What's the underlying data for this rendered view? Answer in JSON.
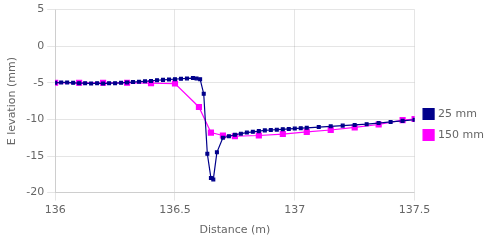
{
  "chart_data": {
    "type": "line",
    "xlabel": "Distance (m)",
    "ylabel": "E levation (mm)",
    "xlim": [
      136,
      137.5
    ],
    "ylim": [
      -20,
      5
    ],
    "xticks": [
      136,
      136.5,
      137,
      137.5
    ],
    "yticks": [
      -20,
      -15,
      -10,
      -5,
      0,
      5
    ],
    "grid": true,
    "legend": "right",
    "series": [
      {
        "name": "25 mm",
        "color": "#00008B",
        "marker": "square",
        "x": [
          136.0,
          136.025,
          136.05,
          136.075,
          136.1,
          136.125,
          136.15,
          136.175,
          136.2,
          136.225,
          136.25,
          136.275,
          136.3,
          136.325,
          136.35,
          136.375,
          136.4,
          136.425,
          136.45,
          136.475,
          136.5,
          136.525,
          136.55,
          136.575,
          136.59,
          136.605,
          136.62,
          136.635,
          136.65,
          136.66,
          136.675,
          136.7,
          136.725,
          136.75,
          136.775,
          136.8,
          136.825,
          136.85,
          136.875,
          136.9,
          136.925,
          136.95,
          136.975,
          137.0,
          137.025,
          137.05,
          137.1,
          137.15,
          137.2,
          137.25,
          137.3,
          137.35,
          137.4,
          137.45,
          137.5
        ],
        "values": [
          -5.0,
          -4.95,
          -4.95,
          -5.0,
          -5.05,
          -5.05,
          -5.1,
          -5.05,
          -5.1,
          -5.05,
          -5.05,
          -5.0,
          -4.95,
          -4.9,
          -4.85,
          -4.8,
          -4.75,
          -4.65,
          -4.6,
          -4.55,
          -4.5,
          -4.45,
          -4.4,
          -4.35,
          -4.4,
          -4.5,
          -6.5,
          -14.7,
          -18.0,
          -18.2,
          -14.5,
          -12.5,
          -12.3,
          -12.1,
          -11.95,
          -11.8,
          -11.7,
          -11.6,
          -11.5,
          -11.45,
          -11.4,
          -11.35,
          -11.3,
          -11.25,
          -11.2,
          -11.15,
          -11.05,
          -10.95,
          -10.85,
          -10.75,
          -10.65,
          -10.5,
          -10.35,
          -10.2,
          -10.05
        ]
      },
      {
        "name": "150 mm",
        "color": "#FF00FF",
        "marker": "square",
        "x": [
          136.0,
          136.1,
          136.2,
          136.3,
          136.4,
          136.5,
          136.6,
          136.65,
          136.7,
          136.75,
          136.85,
          136.95,
          137.05,
          137.15,
          137.25,
          137.35,
          137.45,
          137.5
        ],
        "values": [
          -5.0,
          -5.0,
          -5.0,
          -5.0,
          -5.05,
          -5.1,
          -8.3,
          -11.8,
          -12.2,
          -12.3,
          -12.2,
          -12.0,
          -11.7,
          -11.45,
          -11.1,
          -10.7,
          -10.1,
          -9.95
        ]
      }
    ]
  }
}
